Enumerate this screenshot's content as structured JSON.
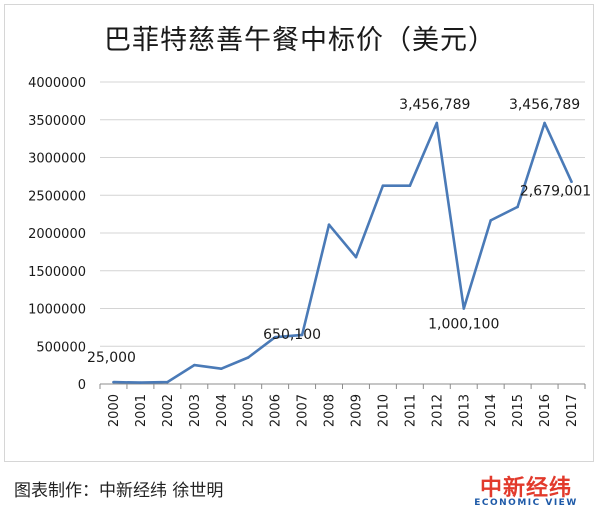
{
  "chart_data": {
    "type": "line",
    "title": "巴菲特慈善午餐中标价（美元）",
    "xlabel": "",
    "ylabel": "",
    "categories": [
      "2000",
      "2001",
      "2002",
      "2003",
      "2004",
      "2005",
      "2006",
      "2007",
      "2008",
      "2009",
      "2010",
      "2011",
      "2012",
      "2013",
      "2014",
      "2015",
      "2016",
      "2017"
    ],
    "series": [
      {
        "values": [
          25000,
          18000,
          25000,
          250100,
          202100,
          351100,
          620100,
          650100,
          2110100,
          1680300,
          2626411,
          2626311,
          3456789,
          1000100,
          2166766,
          2345678,
          3456789,
          2679001
        ]
      }
    ],
    "ylim": [
      0,
      4000000
    ],
    "yticks": [
      0,
      500000,
      1000000,
      1500000,
      2000000,
      2500000,
      3000000,
      3500000,
      4000000
    ],
    "grid": true,
    "legend": "none",
    "annotations": [
      {
        "index": 0,
        "text": "25,000"
      },
      {
        "index": 7,
        "text": "650,100"
      },
      {
        "index": 12,
        "text": "3,456,789"
      },
      {
        "index": 13,
        "text": "1,000,100"
      },
      {
        "index": 16,
        "text": "3,456,789"
      },
      {
        "index": 17,
        "text": "2,679,001"
      }
    ],
    "line_color": "#4a7ab7",
    "grid_color": "#d4d4d4"
  },
  "footer": {
    "credit": "图表制作：中新经纬 徐世明"
  },
  "brand": {
    "name": "中新经纬",
    "sub": "ECONOMIC VIEW",
    "name_color": "#e23a2c",
    "sub_color": "#1e5aa8"
  }
}
